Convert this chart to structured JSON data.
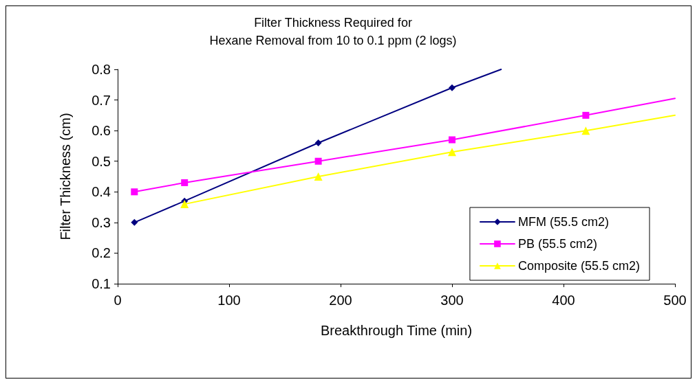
{
  "chart_data": {
    "type": "line",
    "title": "Filter Thickness Required for\nHexane Removal from 10 to 0.1 ppm (2 logs)",
    "xlabel": "Breakthrough Time (min)",
    "ylabel": "Filter Thickness (cm)",
    "xlim": [
      0,
      500
    ],
    "xticks": [
      0,
      100,
      200,
      300,
      400,
      500
    ],
    "ylim": [
      0.1,
      0.8
    ],
    "yticks": [
      0.1,
      0.2,
      0.3,
      0.4,
      0.5,
      0.6,
      0.7,
      0.8
    ],
    "grid": false,
    "legend": "bottom right",
    "series": [
      {
        "name": "MFM (55.5 cm2)",
        "color": "#000080",
        "marker": "diamond",
        "x": [
          15,
          60,
          180,
          300
        ],
        "values": [
          0.3,
          0.37,
          0.56,
          0.74
        ]
      },
      {
        "name": "PB (55.5 cm2)",
        "color": "#ff00ff",
        "marker": "square",
        "x": [
          15,
          60,
          180,
          300,
          420
        ],
        "values": [
          0.4,
          0.43,
          0.5,
          0.57,
          0.65
        ]
      },
      {
        "name": "Composite (55.5 cm2)",
        "color": "#ffff00",
        "marker": "triangle",
        "x": [
          60,
          180,
          300,
          420
        ],
        "values": [
          0.36,
          0.45,
          0.53,
          0.6
        ]
      },
      {
        "color": "#000080",
        "marker": "none",
        "x": [
          300,
          344
        ],
        "values": [
          0.74,
          0.8
        ]
      },
      {
        "color": "#ff00ff",
        "marker": "none",
        "x": [
          420,
          500
        ],
        "values": [
          0.65,
          0.705
        ]
      },
      {
        "color": "#ffff00",
        "marker": "none",
        "x": [
          420,
          500
        ],
        "values": [
          0.6,
          0.65
        ]
      }
    ]
  }
}
